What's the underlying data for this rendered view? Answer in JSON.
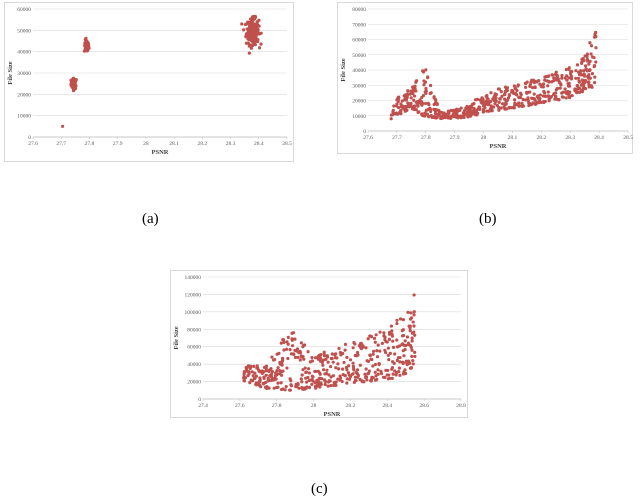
{
  "colors": {
    "marker": "#c0504d",
    "grid": "#d9d9d9",
    "axis": "#bfbfbf"
  },
  "captions": {
    "a": "(a)",
    "b": "(b)",
    "c": "(c)"
  },
  "chart_data": [
    {
      "type": "scatter",
      "panel": "a",
      "xlabel": "PSNR",
      "ylabel": "File Size",
      "xlim": [
        27.6,
        28.5
      ],
      "ylim": [
        0,
        60000
      ],
      "xticks": [
        "27.6",
        "27.7",
        "27.8",
        "27.9",
        "28",
        "28.1",
        "28.2",
        "28.3",
        "28.4",
        "28.5"
      ],
      "yticks": [
        "0",
        "10000",
        "20000",
        "30000",
        "40000",
        "50000",
        "60000"
      ],
      "grid": "horizontal",
      "clusters": [
        {
          "x": 27.705,
          "y": 5000,
          "x_spread": 0.002,
          "y_spread": 300,
          "points": 1
        },
        {
          "x": 27.745,
          "y": 25000,
          "x_spread": 0.01,
          "y_spread": 2500,
          "points": 60
        },
        {
          "x": 27.79,
          "y": 42500,
          "x_spread": 0.008,
          "y_spread": 3000,
          "points": 60
        },
        {
          "x": 28.378,
          "y": 49500,
          "x_spread": 0.022,
          "y_spread": 6000,
          "points": 220
        }
      ]
    },
    {
      "type": "scatter",
      "panel": "b",
      "xlabel": "PSNR",
      "ylabel": "File Size",
      "xlim": [
        27.6,
        28.5
      ],
      "ylim": [
        0,
        80000
      ],
      "xticks": [
        "27.6",
        "27.7",
        "27.8",
        "27.9",
        "28",
        "28.1",
        "28.2",
        "28.3",
        "28.4",
        "28.5"
      ],
      "yticks": [
        "0",
        "10000",
        "20000",
        "30000",
        "40000",
        "50000",
        "60000",
        "70000",
        "80000"
      ],
      "grid": "horizontal",
      "trend": [
        [
          27.68,
          8000,
          20000
        ],
        [
          27.75,
          15000,
          30000
        ],
        [
          27.79,
          10000,
          46000
        ],
        [
          27.85,
          8000,
          12000
        ],
        [
          27.95,
          9000,
          17000
        ],
        [
          28.0,
          12000,
          25000
        ],
        [
          28.1,
          15000,
          30000
        ],
        [
          28.2,
          18000,
          35000
        ],
        [
          28.3,
          22000,
          42000
        ],
        [
          28.35,
          26000,
          52000
        ],
        [
          28.39,
          30000,
          67000
        ]
      ]
    },
    {
      "type": "scatter",
      "panel": "c",
      "xlabel": "PSNR",
      "ylabel": "File Size",
      "xlim": [
        27.4,
        28.8
      ],
      "ylim": [
        0,
        140000
      ],
      "xticks": [
        "27.4",
        "27.6",
        "27.8",
        "28",
        "28.2",
        "28.4",
        "28.6",
        "28.8"
      ],
      "yticks": [
        "0",
        "20000",
        "40000",
        "60000",
        "80000",
        "100000",
        "120000",
        "140000"
      ],
      "grid": "horizontal",
      "trend": [
        [
          27.62,
          18000,
          38000
        ],
        [
          27.75,
          12000,
          40000
        ],
        [
          27.88,
          10000,
          85000
        ],
        [
          28.0,
          12000,
          50000
        ],
        [
          28.2,
          18000,
          65000
        ],
        [
          28.4,
          22000,
          80000
        ],
        [
          28.5,
          28000,
          100000
        ],
        [
          28.55,
          40000,
          122000
        ]
      ]
    }
  ]
}
